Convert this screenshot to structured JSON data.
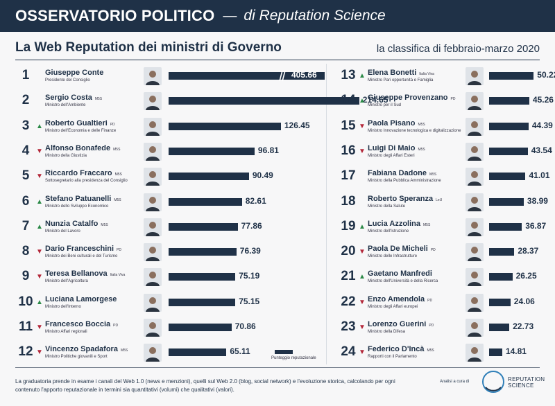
{
  "header": {
    "title": "OSSERVATORIO POLITICO",
    "dash": "—",
    "subtitle": "di Reputation Science"
  },
  "subtitle": "La Web Reputation dei ministri di Governo",
  "period": "la classifica di febbraio-marzo 2020",
  "legend": "Punteggio reputazionale",
  "footnote": "La graduatoria prende in esame i canali del Web 1.0 (news e menzioni), quelli sul Web 2.0 (blog, social network) e l'evoluzione storica, calcolando per ogni contenuto l'apporto reputazionale in termini sia quantitativi (volumi) che qualitativi (valori).",
  "credit": "Analisi a cura di",
  "logo": {
    "line1": "REPUTATION",
    "line2": "SCIENCE"
  },
  "colors": {
    "navy": "#1f3147",
    "up": "#2c8a48",
    "down": "#b3283a",
    "background": "#f7f7f8"
  },
  "chart_data": {
    "type": "bar",
    "title": "La Web Reputation dei ministri di Governo",
    "series_label": "Punteggio reputazionale",
    "axis_break": {
      "rank": 1
    },
    "ministers": [
      {
        "rank": "1",
        "name": "Giuseppe Conte",
        "party": "",
        "role": "Presidente del Consiglio",
        "score": 405.66,
        "trend": ""
      },
      {
        "rank": "2",
        "name": "Sergio Costa",
        "party": "M5S",
        "role": "Ministro dell'Ambiente",
        "score": 214.65,
        "trend": ""
      },
      {
        "rank": "3",
        "name": "Roberto Gualtieri",
        "party": "PD",
        "role": "Ministro dell'Economia e delle Finanze",
        "score": 126.45,
        "trend": "up"
      },
      {
        "rank": "4",
        "name": "Alfonso Bonafede",
        "party": "M5S",
        "role": "Ministro della Giustizia",
        "score": 96.81,
        "trend": "down"
      },
      {
        "rank": "5",
        "name": "Riccardo Fraccaro",
        "party": "M5S",
        "role": "Sottosegretario alla presidenza del Consiglio",
        "score": 90.49,
        "trend": "down"
      },
      {
        "rank": "6",
        "name": "Stefano Patuanelli",
        "party": "M5S",
        "role": "Ministro dello Sviluppo Economico",
        "score": 82.61,
        "trend": "up"
      },
      {
        "rank": "7",
        "name": "Nunzia Catalfo",
        "party": "M5S",
        "role": "Ministro del Lavoro",
        "score": 77.86,
        "trend": "up"
      },
      {
        "rank": "8",
        "name": "Dario Franceschini",
        "party": "PD",
        "role": "Ministro dei Beni culturali e del Turismo",
        "score": 76.39,
        "trend": "down"
      },
      {
        "rank": "9",
        "name": "Teresa Bellanova",
        "party": "Italia Viva",
        "role": "Ministro dell'Agricoltura",
        "score": 75.19,
        "trend": "down"
      },
      {
        "rank": "10",
        "name": "Luciana Lamorgese",
        "party": "",
        "role": "Ministro dell'Interno",
        "score": 75.15,
        "trend": "up"
      },
      {
        "rank": "11",
        "name": "Francesco Boccia",
        "party": "PD",
        "role": "Ministro Affari regionali",
        "score": 70.86,
        "trend": "down"
      },
      {
        "rank": "12",
        "name": "Vincenzo Spadafora",
        "party": "M5S",
        "role": "Ministro Politiche giovanili e Sport",
        "score": 65.11,
        "trend": "down"
      },
      {
        "rank": "13",
        "name": "Elena Bonetti",
        "party": "Italia Viva",
        "role": "Ministro Pari opportunità e Famiglia",
        "score": 50.22,
        "trend": "up"
      },
      {
        "rank": "14",
        "name": "Giuseppe Provenzano",
        "party": "PD",
        "role": "Ministro per il Sud",
        "score": 45.26,
        "trend": "up"
      },
      {
        "rank": "15",
        "name": "Paola Pisano",
        "party": "M5S",
        "role": "Ministro Innovazione tecnologica e digitalizzazione",
        "score": 44.39,
        "trend": "down"
      },
      {
        "rank": "16",
        "name": "Luigi Di Maio",
        "party": "M5S",
        "role": "Ministro degli Affari Esteri",
        "score": 43.54,
        "trend": "down"
      },
      {
        "rank": "17",
        "name": "Fabiana Dadone",
        "party": "M5S",
        "role": "Ministro della Pubblica Amministrazione",
        "score": 41.01,
        "trend": ""
      },
      {
        "rank": "18",
        "name": "Roberto Speranza",
        "party": "LeU",
        "role": "Ministro della Salute",
        "score": 38.99,
        "trend": ""
      },
      {
        "rank": "19",
        "name": "Lucia Azzolina",
        "party": "M5S",
        "role": "Ministro dell'Istruzione",
        "score": 36.87,
        "trend": "up"
      },
      {
        "rank": "20",
        "name": "Paola De Micheli",
        "party": "PD",
        "role": "Ministro delle Infrastrutture",
        "score": 28.37,
        "trend": "down"
      },
      {
        "rank": "21",
        "name": "Gaetano Manfredi",
        "party": "",
        "role": "Ministro dell'Università e della Ricerca",
        "score": 26.25,
        "trend": "up"
      },
      {
        "rank": "22",
        "name": "Enzo Amendola",
        "party": "PD",
        "role": "Ministro degli Affari europei",
        "score": 24.06,
        "trend": "down"
      },
      {
        "rank": "23",
        "name": "Lorenzo Guerini",
        "party": "PD",
        "role": "Ministro della Difesa",
        "score": 22.73,
        "trend": "down"
      },
      {
        "rank": "24",
        "name": "Federico D'Incà",
        "party": "M5S",
        "role": "Rapporti con il Parlamento",
        "score": 14.81,
        "trend": "down"
      }
    ]
  }
}
